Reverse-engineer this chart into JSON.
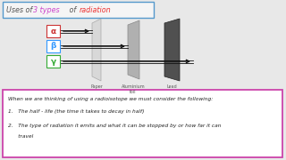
{
  "title_color1": "#555555",
  "title_highlight1_color": "#cc44cc",
  "title_highlight3_color": "#ee3333",
  "bg_color": "#e8e8e8",
  "alpha_color": "#cc3333",
  "beta_color": "#3399ff",
  "gamma_color": "#33aa33",
  "barrier_colors": [
    "#d8d8d8",
    "#b0b0b0",
    "#505050"
  ],
  "barrier_edge_colors": [
    "#aaaaaa",
    "#888888",
    "#222222"
  ],
  "text_box_border": "#cc44aa",
  "text_line1": "When we are thinking of using a radioisotope we must consider the following:",
  "text_line2": "1.   The half - life (the time it takes to decay in half)",
  "text_line3a": "2.   The type of radiation it emits and what it can be stopped by or how far it can",
  "text_line3b": "      travel"
}
